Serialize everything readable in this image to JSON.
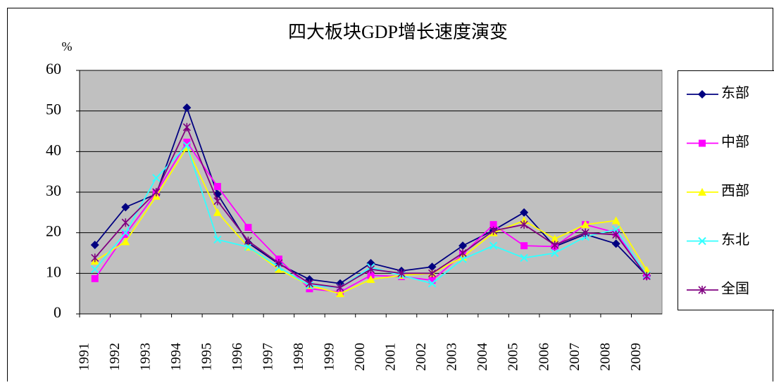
{
  "chart_data": {
    "type": "line",
    "title": "四大板块GDP增长速度演变",
    "y_unit": "%",
    "categories": [
      "1991",
      "1992",
      "1993",
      "1994",
      "1995",
      "1996",
      "1997",
      "1998",
      "1999",
      "2000",
      "2001",
      "2002",
      "2003",
      "2004",
      "2005",
      "2006",
      "2007",
      "2008",
      "2009"
    ],
    "series": [
      {
        "name": "东部",
        "color": "#000080",
        "marker": "diamond",
        "values": [
          17,
          26.3,
          29.5,
          50.8,
          29.5,
          17.5,
          12.3,
          8.5,
          7.5,
          12.5,
          10.6,
          11.6,
          16.8,
          20.6,
          25,
          16.6,
          19.6,
          17.3,
          9.4
        ]
      },
      {
        "name": "中部",
        "color": "#ff00ff",
        "marker": "square",
        "values": [
          8.7,
          19.6,
          29.8,
          42.3,
          31.4,
          21.3,
          13.5,
          6.2,
          5.4,
          9.5,
          9.2,
          8.3,
          14.7,
          22,
          16.8,
          16.6,
          22,
          20,
          9.4
        ]
      },
      {
        "name": "西部",
        "color": "#ffff00",
        "marker": "triangle",
        "values": [
          13,
          17.8,
          29,
          41,
          25,
          16.5,
          11,
          7,
          5,
          8.5,
          9.5,
          10,
          14,
          20,
          23,
          18.5,
          22,
          23,
          10.8
        ]
      },
      {
        "name": "东北",
        "color": "#33ffff",
        "marker": "x",
        "values": [
          11,
          20,
          33.5,
          41.5,
          18.3,
          16.5,
          11.5,
          7,
          6.5,
          11.5,
          9.5,
          7.5,
          13.5,
          16.8,
          13.8,
          15,
          19,
          20.8,
          9.5
        ]
      },
      {
        "name": "全国",
        "color": "#800080",
        "marker": "star",
        "values": [
          13.8,
          22.5,
          30,
          46,
          27.8,
          18,
          12.5,
          7.5,
          6.5,
          11,
          10,
          10,
          15,
          20.5,
          22,
          17,
          20,
          19.5,
          9.3
        ]
      }
    ],
    "ylim": [
      0,
      60
    ],
    "yticks": [
      0,
      10,
      20,
      30,
      40,
      50,
      60
    ],
    "grid": true,
    "plot_background": "#c0c0c0",
    "legend": "right"
  }
}
